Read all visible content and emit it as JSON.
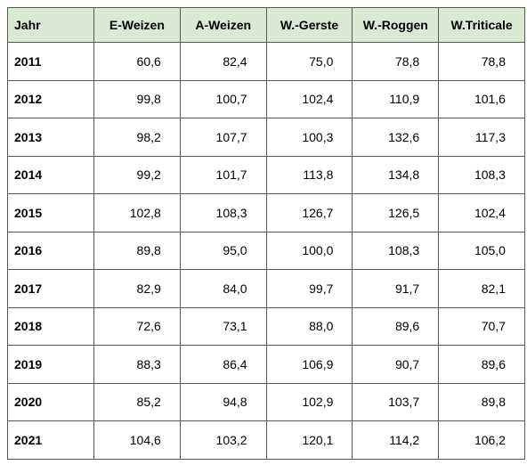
{
  "table": {
    "columns": [
      "Jahr",
      "E-Weizen",
      "A-Weizen",
      "W.-Gerste",
      "W.-Roggen",
      "W.Triticale"
    ],
    "rows": [
      [
        "2011",
        "60,6",
        "82,4",
        "75,0",
        "78,8",
        "78,8"
      ],
      [
        "2012",
        "99,8",
        "100,7",
        "102,4",
        "110,9",
        "101,6"
      ],
      [
        "2013",
        "98,2",
        "107,7",
        "100,3",
        "132,6",
        "117,3"
      ],
      [
        "2014",
        "99,2",
        "101,7",
        "113,8",
        "134,8",
        "108,3"
      ],
      [
        "2015",
        "102,8",
        "108,3",
        "126,7",
        "126,5",
        "102,4"
      ],
      [
        "2016",
        "89,8",
        "95,0",
        "100,0",
        "108,3",
        "105,0"
      ],
      [
        "2017",
        "82,9",
        "84,0",
        "99,7",
        "91,7",
        "82,1"
      ],
      [
        "2018",
        "72,6",
        "73,1",
        "88,0",
        "89,6",
        "70,7"
      ],
      [
        "2019",
        "88,3",
        "86,4",
        "106,9",
        "90,7",
        "89,6"
      ],
      [
        "2020",
        "85,2",
        "94,8",
        "102,9",
        "103,7",
        "89,8"
      ],
      [
        "2021",
        "104,6",
        "103,2",
        "120,1",
        "114,2",
        "106,2"
      ]
    ]
  },
  "colors": {
    "header_background": "#d9ead3",
    "border": "#595959",
    "text": "#000000"
  }
}
